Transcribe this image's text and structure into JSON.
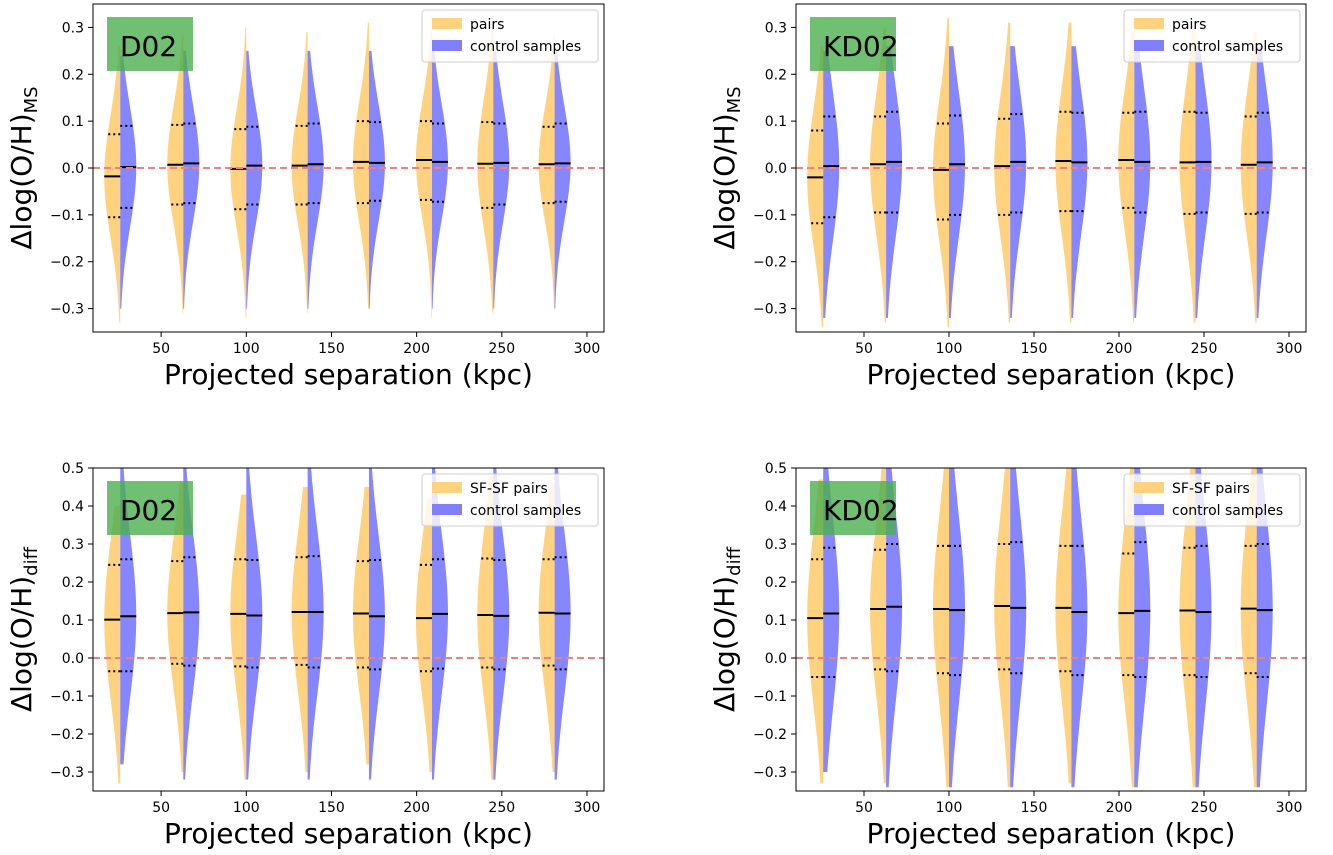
{
  "chart_data": [
    {
      "type": "violin",
      "panel_label": "D02",
      "xlabel": "Projected separation (kpc)",
      "ylabel_main": "Δlog(O/H)",
      "ylabel_sub": "MS",
      "xlim": [
        10,
        310
      ],
      "ylim": [
        -0.35,
        0.35
      ],
      "xticks": [
        50,
        100,
        150,
        200,
        250,
        300
      ],
      "yticks": [
        -0.3,
        -0.2,
        -0.1,
        0.0,
        0.1,
        0.2,
        0.3
      ],
      "ytick_labels": [
        "−0.3",
        "−0.2",
        "−0.1",
        "0.0",
        "0.1",
        "0.2",
        "0.3"
      ],
      "reference_line": 0.0,
      "legend_position": "top-right",
      "legend": [
        "pairs",
        "control samples"
      ],
      "positions": [
        26,
        63,
        100,
        136,
        172,
        209,
        245,
        281
      ],
      "series": [
        {
          "name": "pairs",
          "color": "#FFD27F",
          "median": [
            -0.018,
            0.007,
            -0.002,
            0.005,
            0.013,
            0.017,
            0.009,
            0.008
          ],
          "q_low": [
            -0.105,
            -0.078,
            -0.088,
            -0.078,
            -0.075,
            -0.068,
            -0.085,
            -0.075
          ],
          "q_high": [
            0.072,
            0.092,
            0.083,
            0.09,
            0.1,
            0.1,
            0.098,
            0.088
          ],
          "min": [
            -0.33,
            -0.31,
            -0.32,
            -0.31,
            -0.3,
            -0.32,
            -0.31,
            -0.3
          ],
          "max": [
            0.26,
            0.28,
            0.3,
            0.29,
            0.31,
            0.29,
            0.3,
            0.28
          ]
        },
        {
          "name": "control samples",
          "color": "#8080FF",
          "median": [
            0.002,
            0.01,
            0.005,
            0.008,
            0.011,
            0.013,
            0.011,
            0.01
          ],
          "q_low": [
            -0.085,
            -0.075,
            -0.078,
            -0.075,
            -0.07,
            -0.072,
            -0.078,
            -0.072
          ],
          "q_high": [
            0.09,
            0.095,
            0.088,
            0.095,
            0.098,
            0.095,
            0.095,
            0.095
          ],
          "min": [
            -0.3,
            -0.3,
            -0.3,
            -0.3,
            -0.3,
            -0.3,
            -0.3,
            -0.3
          ],
          "max": [
            0.24,
            0.25,
            0.25,
            0.25,
            0.25,
            0.25,
            0.25,
            0.25
          ]
        }
      ]
    },
    {
      "type": "violin",
      "panel_label": "KD02",
      "xlabel": "Projected separation (kpc)",
      "ylabel_main": "Δlog(O/H)",
      "ylabel_sub": "MS",
      "xlim": [
        10,
        310
      ],
      "ylim": [
        -0.35,
        0.35
      ],
      "xticks": [
        50,
        100,
        150,
        200,
        250,
        300
      ],
      "yticks": [
        -0.3,
        -0.2,
        -0.1,
        0.0,
        0.1,
        0.2,
        0.3
      ],
      "ytick_labels": [
        "−0.3",
        "−0.2",
        "−0.1",
        "0.0",
        "0.1",
        "0.2",
        "0.3"
      ],
      "reference_line": 0.0,
      "legend_position": "top-right",
      "legend": [
        "pairs",
        "control samples"
      ],
      "positions": [
        26,
        63,
        100,
        136,
        172,
        209,
        245,
        281
      ],
      "series": [
        {
          "name": "pairs",
          "color": "#FFD27F",
          "median": [
            -0.02,
            0.008,
            -0.004,
            0.004,
            0.015,
            0.017,
            0.012,
            0.007
          ],
          "q_low": [
            -0.118,
            -0.095,
            -0.11,
            -0.1,
            -0.092,
            -0.085,
            -0.098,
            -0.098
          ],
          "q_high": [
            0.08,
            0.11,
            0.095,
            0.105,
            0.12,
            0.118,
            0.12,
            0.11
          ],
          "min": [
            -0.34,
            -0.33,
            -0.34,
            -0.33,
            -0.33,
            -0.33,
            -0.33,
            -0.33
          ],
          "max": [
            0.26,
            0.3,
            0.32,
            0.31,
            0.31,
            0.29,
            0.3,
            0.29
          ]
        },
        {
          "name": "control samples",
          "color": "#8080FF",
          "median": [
            0.004,
            0.013,
            0.008,
            0.013,
            0.012,
            0.013,
            0.013,
            0.012
          ],
          "q_low": [
            -0.105,
            -0.095,
            -0.1,
            -0.095,
            -0.092,
            -0.095,
            -0.095,
            -0.095
          ],
          "q_high": [
            0.11,
            0.12,
            0.112,
            0.115,
            0.118,
            0.12,
            0.118,
            0.118
          ],
          "min": [
            -0.32,
            -0.32,
            -0.32,
            -0.32,
            -0.32,
            -0.32,
            -0.32,
            -0.32
          ],
          "max": [
            0.25,
            0.26,
            0.26,
            0.26,
            0.26,
            0.26,
            0.26,
            0.26
          ]
        }
      ]
    },
    {
      "type": "violin",
      "panel_label": "D02",
      "xlabel": "Projected separation (kpc)",
      "ylabel_main": "Δlog(O/H)",
      "ylabel_sub": "diff",
      "xlim": [
        10,
        310
      ],
      "ylim": [
        -0.35,
        0.5
      ],
      "xticks": [
        50,
        100,
        150,
        200,
        250,
        300
      ],
      "yticks": [
        -0.3,
        -0.2,
        -0.1,
        0.0,
        0.1,
        0.2,
        0.3,
        0.4,
        0.5
      ],
      "ytick_labels": [
        "−0.3",
        "−0.2",
        "−0.1",
        "0.0",
        "0.1",
        "0.2",
        "0.3",
        "0.4",
        "0.5"
      ],
      "reference_line": 0.0,
      "legend_position": "top-right",
      "legend": [
        "SF-SF pairs",
        "control samples"
      ],
      "positions": [
        26,
        63,
        100,
        136,
        172,
        209,
        245,
        281
      ],
      "series": [
        {
          "name": "SF-SF pairs",
          "color": "#FFD27F",
          "median": [
            0.101,
            0.118,
            0.116,
            0.121,
            0.117,
            0.105,
            0.113,
            0.119
          ],
          "q_low": [
            -0.035,
            -0.015,
            -0.022,
            -0.018,
            -0.025,
            -0.035,
            -0.025,
            -0.02
          ],
          "q_high": [
            0.245,
            0.255,
            0.26,
            0.265,
            0.255,
            0.245,
            0.262,
            0.26
          ],
          "min": [
            -0.33,
            -0.3,
            -0.32,
            -0.3,
            -0.28,
            -0.3,
            -0.32,
            -0.3
          ],
          "max": [
            0.4,
            0.46,
            0.43,
            0.45,
            0.45,
            0.42,
            0.48,
            0.46
          ]
        },
        {
          "name": "control samples",
          "color": "#8080FF",
          "median": [
            0.11,
            0.12,
            0.112,
            0.121,
            0.11,
            0.116,
            0.111,
            0.117
          ],
          "q_low": [
            -0.035,
            -0.02,
            -0.025,
            -0.025,
            -0.03,
            -0.028,
            -0.03,
            -0.03
          ],
          "q_high": [
            0.26,
            0.265,
            0.258,
            0.268,
            0.258,
            0.26,
            0.258,
            0.265
          ],
          "min": [
            -0.28,
            -0.32,
            -0.32,
            -0.32,
            -0.32,
            -0.32,
            -0.32,
            -0.32
          ],
          "max": [
            0.5,
            0.5,
            0.5,
            0.5,
            0.5,
            0.5,
            0.5,
            0.5
          ]
        }
      ]
    },
    {
      "type": "violin",
      "panel_label": "KD02",
      "xlabel": "Projected separation (kpc)",
      "ylabel_main": "Δlog(O/H)",
      "ylabel_sub": "diff",
      "xlim": [
        10,
        310
      ],
      "ylim": [
        -0.35,
        0.5
      ],
      "xticks": [
        50,
        100,
        150,
        200,
        250,
        300
      ],
      "yticks": [
        -0.3,
        -0.2,
        -0.1,
        0.0,
        0.1,
        0.2,
        0.3,
        0.4,
        0.5
      ],
      "ytick_labels": [
        "−0.3",
        "−0.2",
        "−0.1",
        "0.0",
        "0.1",
        "0.2",
        "0.3",
        "0.4",
        "0.5"
      ],
      "reference_line": 0.0,
      "legend_position": "top-right",
      "legend": [
        "SF-SF pairs",
        "control samples"
      ],
      "positions": [
        26,
        63,
        100,
        136,
        172,
        209,
        245,
        281
      ],
      "series": [
        {
          "name": "SF-SF pairs",
          "color": "#FFD27F",
          "median": [
            0.105,
            0.129,
            0.129,
            0.137,
            0.132,
            0.118,
            0.125,
            0.13
          ],
          "q_low": [
            -0.05,
            -0.03,
            -0.04,
            -0.03,
            -0.035,
            -0.045,
            -0.045,
            -0.04
          ],
          "q_high": [
            0.26,
            0.285,
            0.295,
            0.3,
            0.295,
            0.275,
            0.29,
            0.295
          ],
          "min": [
            -0.33,
            -0.33,
            -0.34,
            -0.34,
            -0.33,
            -0.34,
            -0.34,
            -0.34
          ],
          "max": [
            0.47,
            0.5,
            0.5,
            0.5,
            0.5,
            0.5,
            0.5,
            0.5
          ]
        },
        {
          "name": "control samples",
          "color": "#8080FF",
          "median": [
            0.117,
            0.135,
            0.126,
            0.132,
            0.121,
            0.124,
            0.121,
            0.126
          ],
          "q_low": [
            -0.05,
            -0.035,
            -0.045,
            -0.04,
            -0.045,
            -0.05,
            -0.05,
            -0.05
          ],
          "q_high": [
            0.29,
            0.3,
            0.295,
            0.305,
            0.295,
            0.305,
            0.295,
            0.3
          ],
          "min": [
            -0.3,
            -0.34,
            -0.34,
            -0.34,
            -0.34,
            -0.34,
            -0.34,
            -0.34
          ],
          "max": [
            0.5,
            0.5,
            0.5,
            0.5,
            0.5,
            0.5,
            0.5,
            0.5
          ]
        }
      ]
    }
  ]
}
